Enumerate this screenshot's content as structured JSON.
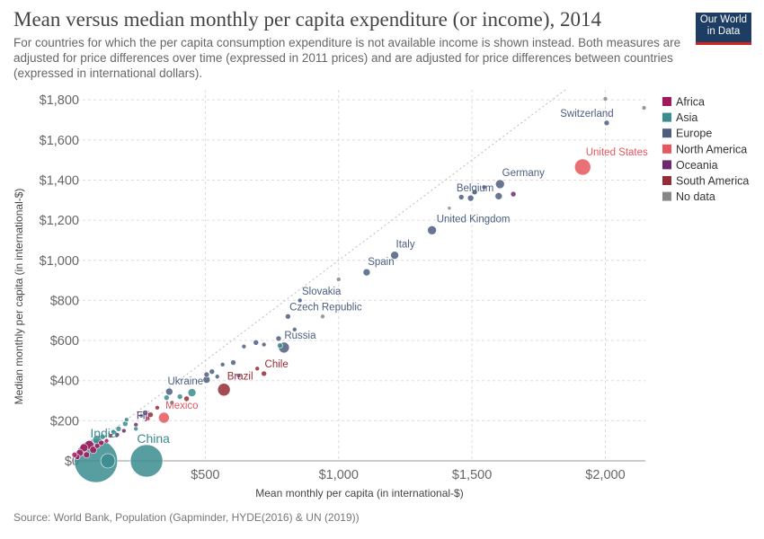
{
  "header": {
    "title": "Mean versus median monthly per capita expenditure (or income), 2014",
    "subtitle": "For countries for which the per capita consumption expenditure is not available income is shown instead. Both measures are adjusted for price differences over time (expressed in 2011 prices) and are adjusted for price differences between countries (expressed in international dollars).",
    "logo_line1": "Our World",
    "logo_line2": "in Data"
  },
  "footer": {
    "source": "Source: World Bank, Population (Gapminder, HYDE(2016) & UN (2019))"
  },
  "colors": {
    "Africa": "#a2185b",
    "Asia": "#3b8c8f",
    "Europe": "#4c5e80",
    "North America": "#e5575d",
    "Oceania": "#70296f",
    "South America": "#952b36",
    "No data": "#888888"
  },
  "chart_data": {
    "type": "scatter",
    "title": "Mean versus median monthly per capita expenditure (or income), 2014",
    "xlabel": "Mean monthly per capita (in international-$)",
    "ylabel": "Median monthly per capita (in international-$)",
    "xlim": [
      0,
      2150
    ],
    "ylim": [
      0,
      1850
    ],
    "x_ticks": [
      500,
      1000,
      1500,
      2000
    ],
    "x_tick_labels": [
      "$500",
      "$1,000",
      "$1,500",
      "$2,000"
    ],
    "y_ticks": [
      0,
      200,
      400,
      600,
      800,
      1000,
      1200,
      1400,
      1600,
      1800
    ],
    "y_tick_labels": [
      "$0",
      "$200",
      "$400",
      "$600",
      "$800",
      "$1,000",
      "$1,200",
      "$1,400",
      "$1,600",
      "$1,800"
    ],
    "grid": true,
    "reference_line": "y = x",
    "legend_position": "right",
    "legend": [
      "Africa",
      "Asia",
      "Europe",
      "North America",
      "Oceania",
      "South America",
      "No data"
    ],
    "points": [
      {
        "label": "Switzerland",
        "region": "Europe",
        "x": 2005,
        "y": 1685,
        "r": 3
      },
      {
        "label": "",
        "region": "No data",
        "x": 2000,
        "y": 1805,
        "r": 2.5
      },
      {
        "label": "",
        "region": "No data",
        "x": 2145,
        "y": 1760,
        "r": 2.5
      },
      {
        "label": "United States",
        "region": "North America",
        "x": 1915,
        "y": 1465,
        "r": 9
      },
      {
        "label": "Germany",
        "region": "Europe",
        "x": 1605,
        "y": 1380,
        "r": 5
      },
      {
        "label": "",
        "region": "Oceania",
        "x": 1655,
        "y": 1330,
        "r": 3
      },
      {
        "label": "",
        "region": "Europe",
        "x": 1600,
        "y": 1320,
        "r": 4
      },
      {
        "label": "Belgium",
        "region": "Europe",
        "x": 1495,
        "y": 1310,
        "r": 3.5
      },
      {
        "label": "",
        "region": "Europe",
        "x": 1510,
        "y": 1340,
        "r": 3
      },
      {
        "label": "",
        "region": "Europe",
        "x": 1460,
        "y": 1315,
        "r": 3
      },
      {
        "label": "",
        "region": "Europe",
        "x": 1545,
        "y": 1365,
        "r": 2.5
      },
      {
        "label": "",
        "region": "No data",
        "x": 1415,
        "y": 1260,
        "r": 2
      },
      {
        "label": "United Kingdom",
        "region": "Europe",
        "x": 1350,
        "y": 1150,
        "r": 5
      },
      {
        "label": "Italy",
        "region": "Europe",
        "x": 1210,
        "y": 1025,
        "r": 4.5
      },
      {
        "label": "Spain",
        "region": "Europe",
        "x": 1105,
        "y": 940,
        "r": 4
      },
      {
        "label": "",
        "region": "No data",
        "x": 1000,
        "y": 905,
        "r": 2.5
      },
      {
        "label": "Slovakia",
        "region": "Europe",
        "x": 855,
        "y": 800,
        "r": 2.5
      },
      {
        "label": "Czech Republic",
        "region": "Europe",
        "x": 810,
        "y": 720,
        "r": 3
      },
      {
        "label": "",
        "region": "No data",
        "x": 940,
        "y": 720,
        "r": 2.5
      },
      {
        "label": "",
        "region": "Europe",
        "x": 835,
        "y": 655,
        "r": 2.5
      },
      {
        "label": "Russia",
        "region": "Europe",
        "x": 795,
        "y": 565,
        "r": 6
      },
      {
        "label": "",
        "region": "Europe",
        "x": 775,
        "y": 610,
        "r": 3
      },
      {
        "label": "",
        "region": "Europe",
        "x": 720,
        "y": 580,
        "r": 2.5
      },
      {
        "label": "",
        "region": "Europe",
        "x": 690,
        "y": 590,
        "r": 3
      },
      {
        "label": "",
        "region": "Europe",
        "x": 645,
        "y": 570,
        "r": 2.5
      },
      {
        "label": "",
        "region": "Europe",
        "x": 605,
        "y": 490,
        "r": 3
      },
      {
        "label": "",
        "region": "Europe",
        "x": 565,
        "y": 480,
        "r": 2.5
      },
      {
        "label": "",
        "region": "Europe",
        "x": 525,
        "y": 445,
        "r": 3
      },
      {
        "label": "",
        "region": "Europe",
        "x": 505,
        "y": 430,
        "r": 3
      },
      {
        "label": "",
        "region": "Europe",
        "x": 545,
        "y": 420,
        "r": 2.5
      },
      {
        "label": "",
        "region": "Europe",
        "x": 625,
        "y": 425,
        "r": 2.5
      },
      {
        "label": "Chile",
        "region": "South America",
        "x": 720,
        "y": 435,
        "r": 3
      },
      {
        "label": "",
        "region": "South America",
        "x": 695,
        "y": 460,
        "r": 2.5
      },
      {
        "label": "",
        "region": "Asia",
        "x": 780,
        "y": 575,
        "r": 3
      },
      {
        "label": "Brazil",
        "region": "South America",
        "x": 570,
        "y": 355,
        "r": 7
      },
      {
        "label": "",
        "region": "Europe",
        "x": 505,
        "y": 405,
        "r": 4
      },
      {
        "label": "Ukraine",
        "region": "Europe",
        "x": 365,
        "y": 345,
        "r": 4
      },
      {
        "label": "",
        "region": "Asia",
        "x": 450,
        "y": 340,
        "r": 4.5
      },
      {
        "label": "",
        "region": "Asia",
        "x": 405,
        "y": 320,
        "r": 3
      },
      {
        "label": "",
        "region": "South America",
        "x": 430,
        "y": 310,
        "r": 3
      },
      {
        "label": "",
        "region": "Asia",
        "x": 355,
        "y": 315,
        "r": 3
      },
      {
        "label": "",
        "region": "Asia",
        "x": 375,
        "y": 290,
        "r": 2.5
      },
      {
        "label": "Mexico",
        "region": "North America",
        "x": 345,
        "y": 215,
        "r": 6
      },
      {
        "label": "",
        "region": "South America",
        "x": 295,
        "y": 230,
        "r": 3
      },
      {
        "label": "",
        "region": "Europe",
        "x": 275,
        "y": 240,
        "r": 3
      },
      {
        "label": "",
        "region": "Asia",
        "x": 260,
        "y": 225,
        "r": 2.5
      },
      {
        "label": "",
        "region": "South America",
        "x": 320,
        "y": 265,
        "r": 2.5
      },
      {
        "label": "",
        "region": "North America",
        "x": 285,
        "y": 210,
        "r": 2.5
      },
      {
        "label": "Fiji",
        "region": "Oceania",
        "x": 240,
        "y": 180,
        "r": 2.5
      },
      {
        "label": "",
        "region": "Asia",
        "x": 200,
        "y": 185,
        "r": 3
      },
      {
        "label": "",
        "region": "Asia",
        "x": 240,
        "y": 160,
        "r": 2.5
      },
      {
        "label": "",
        "region": "Asia",
        "x": 175,
        "y": 160,
        "r": 3
      },
      {
        "label": "",
        "region": "Asia",
        "x": 155,
        "y": 145,
        "r": 2.5
      },
      {
        "label": "",
        "region": "South America",
        "x": 145,
        "y": 125,
        "r": 2.5
      },
      {
        "label": "",
        "region": "Oceania",
        "x": 195,
        "y": 150,
        "r": 2.5
      },
      {
        "label": "",
        "region": "Asia",
        "x": 115,
        "y": 120,
        "r": 3
      },
      {
        "label": "China",
        "region": "Asia",
        "x": 280,
        "y": 0,
        "r": 18
      },
      {
        "label": "India",
        "region": "Asia",
        "x": 90,
        "y": 0,
        "r": 24
      },
      {
        "label": "",
        "region": "Asia",
        "x": 135,
        "y": 0,
        "r": 8
      },
      {
        "label": "",
        "region": "Asia",
        "x": 95,
        "y": 105,
        "r": 5
      },
      {
        "label": "",
        "region": "Africa",
        "x": 65,
        "y": 80,
        "r": 5
      },
      {
        "label": "",
        "region": "Africa",
        "x": 45,
        "y": 65,
        "r": 4.5
      },
      {
        "label": "",
        "region": "Africa",
        "x": 80,
        "y": 55,
        "r": 4
      },
      {
        "label": "",
        "region": "Africa",
        "x": 30,
        "y": 40,
        "r": 4
      },
      {
        "label": "",
        "region": "Africa",
        "x": 55,
        "y": 30,
        "r": 3.5
      },
      {
        "label": "",
        "region": "Africa",
        "x": 95,
        "y": 75,
        "r": 3
      },
      {
        "label": "",
        "region": "Africa",
        "x": 110,
        "y": 90,
        "r": 3
      },
      {
        "label": "",
        "region": "Africa",
        "x": 20,
        "y": 20,
        "r": 3
      },
      {
        "label": "",
        "region": "Africa",
        "x": 10,
        "y": 30,
        "r": 3
      },
      {
        "label": "",
        "region": "Africa",
        "x": 130,
        "y": 100,
        "r": 2.5
      },
      {
        "label": "",
        "region": "Oceania",
        "x": 170,
        "y": 130,
        "r": 2.5
      },
      {
        "label": "",
        "region": "Asia",
        "x": 205,
        "y": 205,
        "r": 2.5
      }
    ]
  }
}
